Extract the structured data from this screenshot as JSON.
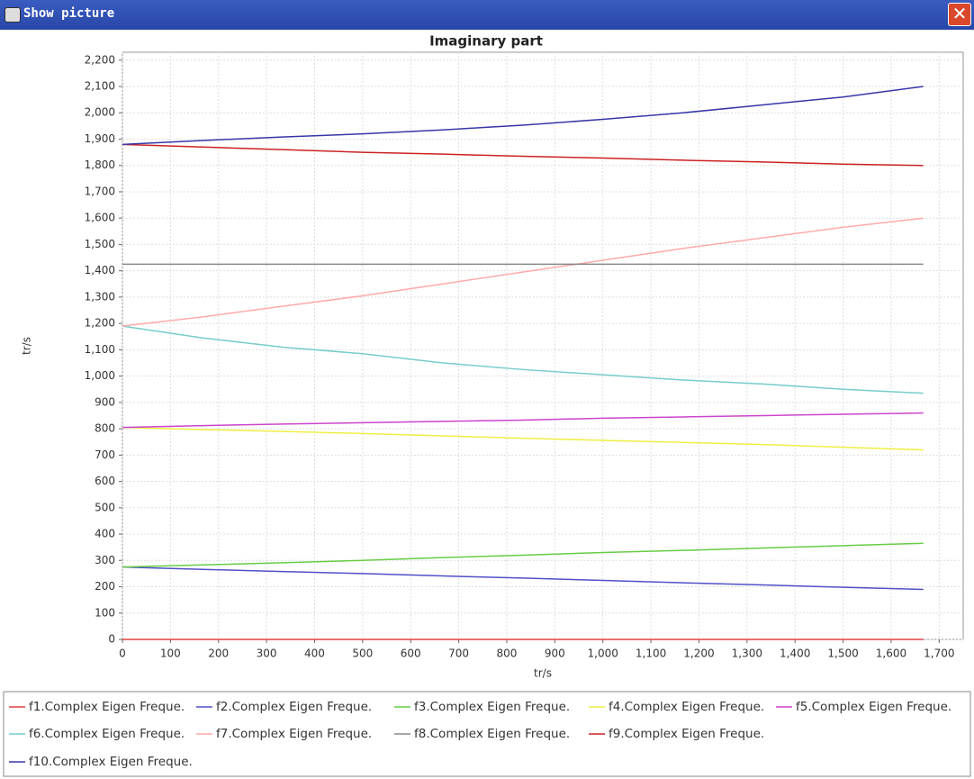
{
  "window": {
    "title": "Show picture"
  },
  "chart_data": {
    "type": "line",
    "title": "Imaginary part",
    "x_label": "tr/s",
    "y_label": "tr/s",
    "x": [
      0,
      167,
      333,
      500,
      667,
      833,
      1000,
      1167,
      1333,
      1500,
      1667
    ],
    "series": [
      {
        "name": "f1.Complex Eigen Freque.",
        "color": "#e04040",
        "values": [
          0,
          0,
          0,
          0,
          0,
          0,
          0,
          0,
          0,
          0,
          0
        ]
      },
      {
        "name": "f2.Complex Eigen Freque.",
        "color": "#5050c8",
        "values": [
          275,
          266,
          258,
          250,
          241,
          233,
          224,
          215,
          207,
          198,
          190
        ]
      },
      {
        "name": "f3.Complex Eigen Freque.",
        "color": "#66cc44",
        "values": [
          275,
          283,
          291,
          300,
          311,
          320,
          330,
          338,
          347,
          356,
          365
        ]
      },
      {
        "name": "f4.Complex Eigen Freque.",
        "color": "#eeee44",
        "values": [
          805,
          797,
          790,
          782,
          773,
          764,
          756,
          748,
          740,
          730,
          720
        ]
      },
      {
        "name": "f5.Complex Eigen Freque.",
        "color": "#cc44cc",
        "values": [
          805,
          812,
          818,
          823,
          828,
          833,
          840,
          845,
          850,
          855,
          860
        ]
      },
      {
        "name": "f6.Complex Eigen Freque.",
        "color": "#77cccc",
        "values": [
          1190,
          1145,
          1110,
          1085,
          1050,
          1025,
          1005,
          985,
          970,
          950,
          935
        ]
      },
      {
        "name": "f7.Complex Eigen Freque.",
        "color": "#ffaaaa",
        "values": [
          1190,
          1225,
          1265,
          1305,
          1350,
          1395,
          1440,
          1485,
          1525,
          1565,
          1600
        ]
      },
      {
        "name": "f8.Complex Eigen Freque.",
        "color": "#888888",
        "values": [
          1425,
          1425,
          1425,
          1425,
          1425,
          1425,
          1425,
          1425,
          1425,
          1425,
          1425
        ]
      },
      {
        "name": "f9.Complex Eigen Freque.",
        "color": "#cc2222",
        "values": [
          1880,
          1870,
          1860,
          1850,
          1843,
          1835,
          1828,
          1820,
          1813,
          1805,
          1800
        ]
      },
      {
        "name": "f10.Complex Eigen Freque.",
        "color": "#3636a8",
        "values": [
          1880,
          1895,
          1908,
          1920,
          1935,
          1953,
          1975,
          2000,
          2030,
          2060,
          2100
        ]
      }
    ],
    "xlim": [
      0,
      1750
    ],
    "ylim": [
      0,
      2230
    ],
    "xticks": [
      0,
      100,
      200,
      300,
      400,
      500,
      600,
      700,
      800,
      900,
      {
        "value": 1000,
        "label": "1,000"
      },
      {
        "value": 1100,
        "label": "1,100"
      },
      {
        "value": 1200,
        "label": "1,200"
      },
      {
        "value": 1300,
        "label": "1,300"
      },
      {
        "value": 1400,
        "label": "1,400"
      },
      {
        "value": 1500,
        "label": "1,500"
      },
      {
        "value": 1600,
        "label": "1,600"
      },
      {
        "value": 1700,
        "label": "1,700"
      }
    ],
    "yticks": [
      0,
      100,
      200,
      300,
      400,
      500,
      600,
      700,
      800,
      900,
      {
        "value": 1000,
        "label": "1,000"
      },
      {
        "value": 1100,
        "label": "1,100"
      },
      {
        "value": 1200,
        "label": "1,200"
      },
      {
        "value": 1300,
        "label": "1,300"
      },
      {
        "value": 1400,
        "label": "1,400"
      },
      {
        "value": 1500,
        "label": "1,500"
      },
      {
        "value": 1600,
        "label": "1,600"
      },
      {
        "value": 1700,
        "label": "1,700"
      },
      {
        "value": 1800,
        "label": "1,800"
      },
      {
        "value": 1900,
        "label": "1,900"
      },
      {
        "value": 2000,
        "label": "2,000"
      },
      {
        "value": 2100,
        "label": "2,100"
      },
      {
        "value": 2200,
        "label": "2,200"
      }
    ],
    "grid": true
  }
}
